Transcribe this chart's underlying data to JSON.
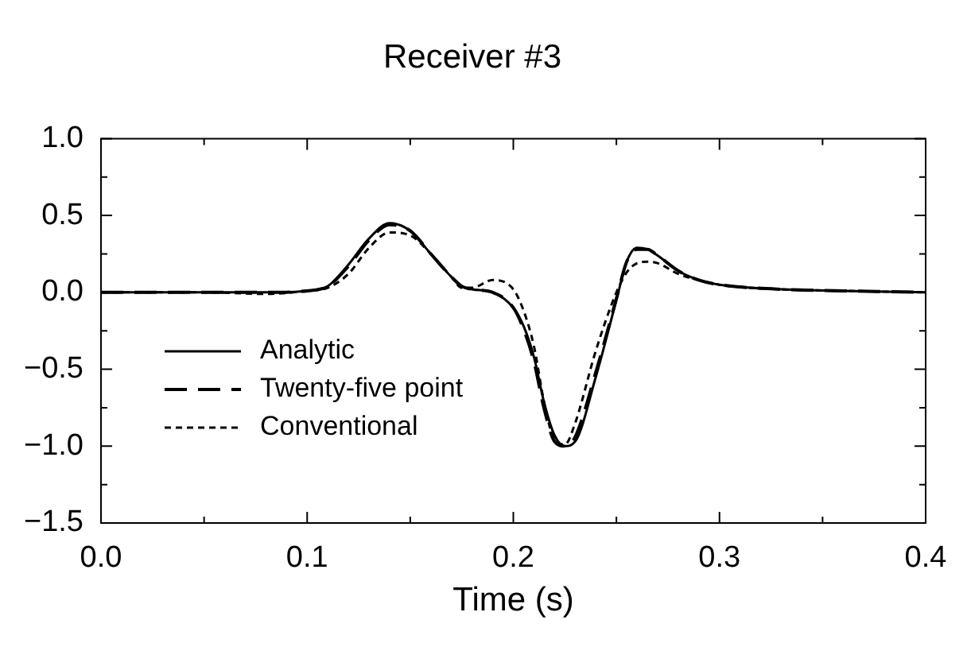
{
  "chart_data": {
    "type": "line",
    "title": "Receiver #3",
    "xlabel": "Time (s)",
    "x": [
      0,
      0.05,
      0.08,
      0.1,
      0.11,
      0.12,
      0.13,
      0.14,
      0.15,
      0.16,
      0.17,
      0.175,
      0.18,
      0.19,
      0.2,
      0.205,
      0.21,
      0.215,
      0.22,
      0.225,
      0.23,
      0.24,
      0.25,
      0.255,
      0.26,
      0.265,
      0.27,
      0.28,
      0.29,
      0.3,
      0.33,
      0.36,
      0.4
    ],
    "series": [
      {
        "name": "Analytic",
        "color": "#000000",
        "line_style": "solid",
        "values": [
          0,
          0,
          0,
          0.01,
          0.04,
          0.18,
          0.35,
          0.45,
          0.4,
          0.25,
          0.1,
          0.04,
          0.02,
          0,
          -0.1,
          -0.22,
          -0.42,
          -0.72,
          -0.93,
          -1.0,
          -0.97,
          -0.55,
          -0.05,
          0.2,
          0.29,
          0.28,
          0.24,
          0.14,
          0.08,
          0.05,
          0.02,
          0.01,
          0
        ]
      },
      {
        "name": "Twenty-five point",
        "color": "#000000",
        "line_style": "dashed",
        "values": [
          0,
          0,
          0,
          0.01,
          0.04,
          0.17,
          0.34,
          0.44,
          0.4,
          0.25,
          0.1,
          0.04,
          0.02,
          0,
          -0.1,
          -0.24,
          -0.45,
          -0.76,
          -0.97,
          -1.0,
          -0.94,
          -0.52,
          -0.04,
          0.2,
          0.28,
          0.28,
          0.24,
          0.14,
          0.08,
          0.05,
          0.02,
          0.01,
          0
        ]
      },
      {
        "name": "Conventional",
        "color": "#000000",
        "line_style": "dotted",
        "values": [
          0,
          0,
          -0.01,
          0.01,
          0.03,
          0.12,
          0.29,
          0.39,
          0.37,
          0.25,
          0.1,
          0.03,
          0.03,
          0.08,
          0.02,
          -0.12,
          -0.35,
          -0.72,
          -0.96,
          -0.99,
          -0.85,
          -0.38,
          0,
          0.13,
          0.19,
          0.2,
          0.19,
          0.12,
          0.08,
          0.05,
          0.02,
          0.01,
          0
        ]
      }
    ],
    "xlim": [
      0,
      0.4
    ],
    "xticks": [
      {
        "value": 0,
        "label": "0.0"
      },
      {
        "value": 0.05,
        "label": null
      },
      {
        "value": 0.1,
        "label": "0.1"
      },
      {
        "value": 0.15,
        "label": null
      },
      {
        "value": 0.2,
        "label": "0.2"
      },
      {
        "value": 0.25,
        "label": null
      },
      {
        "value": 0.3,
        "label": "0.3"
      },
      {
        "value": 0.35,
        "label": null
      },
      {
        "value": 0.4,
        "label": "0.4"
      }
    ],
    "ylim": [
      -1.5,
      1.0
    ],
    "yticks": [
      {
        "value": -1.5,
        "label": "−1.5"
      },
      {
        "value": -1.25,
        "label": null
      },
      {
        "value": -1.0,
        "label": "−1.0"
      },
      {
        "value": -0.75,
        "label": null
      },
      {
        "value": -0.5,
        "label": "−0.5"
      },
      {
        "value": -0.25,
        "label": null
      },
      {
        "value": 0,
        "label": "0.0"
      },
      {
        "value": 0.25,
        "label": null
      },
      {
        "value": 0.5,
        "label": "0.5"
      },
      {
        "value": 0.75,
        "label": null
      },
      {
        "value": 1.0,
        "label": "1.0"
      }
    ],
    "legend": "bottom left"
  }
}
